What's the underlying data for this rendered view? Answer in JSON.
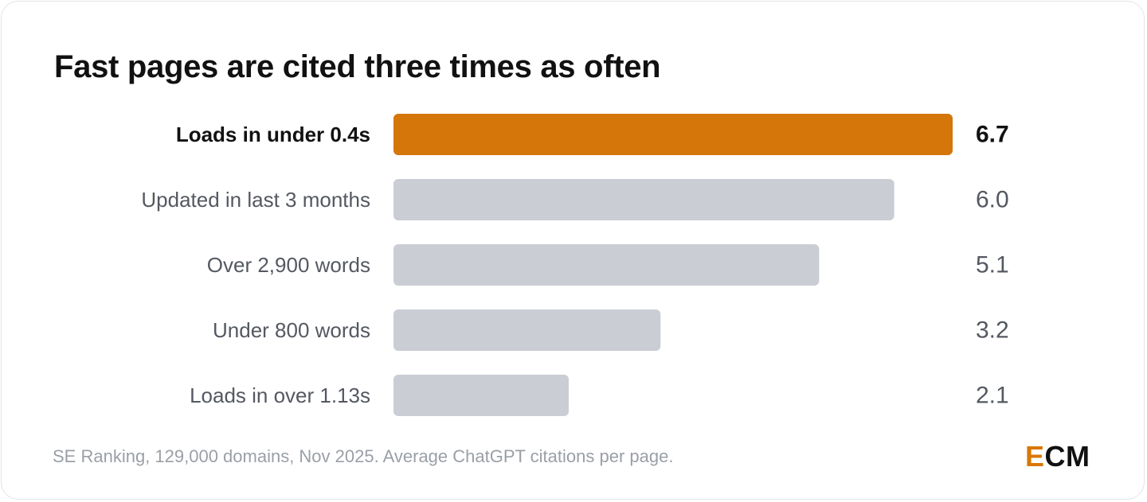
{
  "chart_data": {
    "type": "bar",
    "orientation": "horizontal",
    "title": "Fast pages are cited three times as often",
    "categories": [
      "Loads in under 0.4s",
      "Updated in last 3 months",
      "Over 2,900 words",
      "Under 800 words",
      "Loads in over 1.13s"
    ],
    "values": [
      6.7,
      6.0,
      5.1,
      3.2,
      2.1
    ],
    "value_labels": [
      "6.7",
      "6.0",
      "5.1",
      "3.2",
      "2.1"
    ],
    "highlight_index": 0,
    "xlim": [
      0,
      6.7
    ],
    "grid": false,
    "legend": "none"
  },
  "colors": {
    "highlight_bar": "#d4760a",
    "default_bar": "#cacdd4",
    "highlight_text": "#111111",
    "default_text": "#545861"
  },
  "footnote": "SE Ranking, 129,000 domains, Nov 2025. Average ChatGPT citations per page.",
  "logo": {
    "first": "E",
    "rest": "CM"
  }
}
